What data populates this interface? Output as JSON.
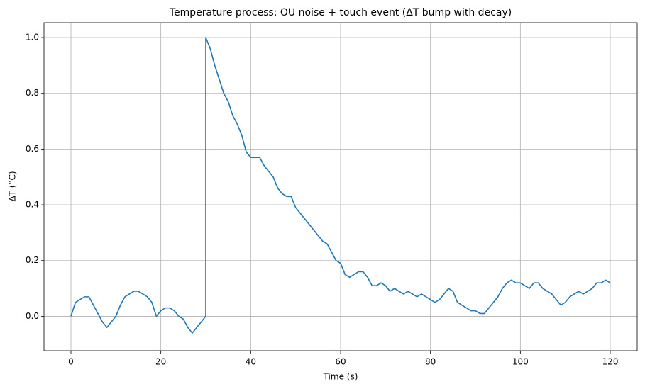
{
  "chart_data": {
    "type": "line",
    "title": "Temperature process: OU noise + touch event (ΔT bump with decay)",
    "xlabel": "Time (s)",
    "ylabel": "ΔT (°C)",
    "x": [
      0,
      1,
      2,
      3,
      4,
      5,
      6,
      7,
      8,
      9,
      10,
      11,
      12,
      13,
      14,
      15,
      16,
      17,
      18,
      19,
      20,
      21,
      22,
      23,
      24,
      25,
      26,
      27,
      28,
      29,
      30,
      30,
      31,
      32,
      33,
      34,
      35,
      36,
      37,
      38,
      39,
      40,
      41,
      42,
      43,
      44,
      45,
      46,
      47,
      48,
      49,
      50,
      51,
      52,
      53,
      54,
      55,
      56,
      57,
      58,
      59,
      60,
      61,
      62,
      63,
      64,
      65,
      66,
      67,
      68,
      69,
      70,
      71,
      72,
      73,
      74,
      75,
      76,
      77,
      78,
      79,
      80,
      81,
      82,
      83,
      84,
      85,
      86,
      87,
      88,
      89,
      90,
      91,
      92,
      93,
      94,
      95,
      96,
      97,
      98,
      99,
      100,
      101,
      102,
      103,
      104,
      105,
      106,
      107,
      108,
      109,
      110,
      111,
      112,
      113,
      114,
      115,
      116,
      117,
      118,
      119,
      120
    ],
    "series": [
      {
        "color": "#1f77b4",
        "values": [
          0.0,
          0.05,
          0.06,
          0.07,
          0.07,
          0.04,
          0.01,
          -0.02,
          -0.04,
          -0.02,
          0.0,
          0.04,
          0.07,
          0.08,
          0.09,
          0.09,
          0.08,
          0.07,
          0.05,
          0.0,
          0.02,
          0.03,
          0.03,
          0.02,
          0.0,
          -0.01,
          -0.04,
          -0.06,
          -0.04,
          -0.02,
          0.0,
          1.0,
          0.96,
          0.9,
          0.85,
          0.8,
          0.77,
          0.72,
          0.69,
          0.65,
          0.59,
          0.57,
          0.57,
          0.57,
          0.54,
          0.52,
          0.5,
          0.46,
          0.44,
          0.43,
          0.43,
          0.39,
          0.37,
          0.35,
          0.33,
          0.31,
          0.29,
          0.27,
          0.26,
          0.23,
          0.2,
          0.19,
          0.15,
          0.14,
          0.15,
          0.16,
          0.16,
          0.14,
          0.11,
          0.11,
          0.12,
          0.11,
          0.09,
          0.1,
          0.09,
          0.08,
          0.09,
          0.08,
          0.07,
          0.08,
          0.07,
          0.06,
          0.05,
          0.06,
          0.08,
          0.1,
          0.09,
          0.05,
          0.04,
          0.03,
          0.02,
          0.02,
          0.01,
          0.01,
          0.03,
          0.05,
          0.07,
          0.1,
          0.12,
          0.13,
          0.12,
          0.12,
          0.11,
          0.1,
          0.12,
          0.12,
          0.1,
          0.09,
          0.08,
          0.06,
          0.04,
          0.05,
          0.07,
          0.08,
          0.09,
          0.08,
          0.09,
          0.1,
          0.12,
          0.12,
          0.13,
          0.12
        ]
      }
    ],
    "xlim": [
      -6,
      126
    ],
    "xticks": [
      0,
      20,
      40,
      60,
      80,
      100,
      120
    ],
    "ylim": [
      -0.1235,
      1.0535
    ],
    "yticks": [
      {
        "value": 0,
        "label": "0.0"
      },
      0.2,
      0.4,
      0.6,
      0.8,
      {
        "value": 1,
        "label": "1.0"
      }
    ],
    "grid": true
  }
}
